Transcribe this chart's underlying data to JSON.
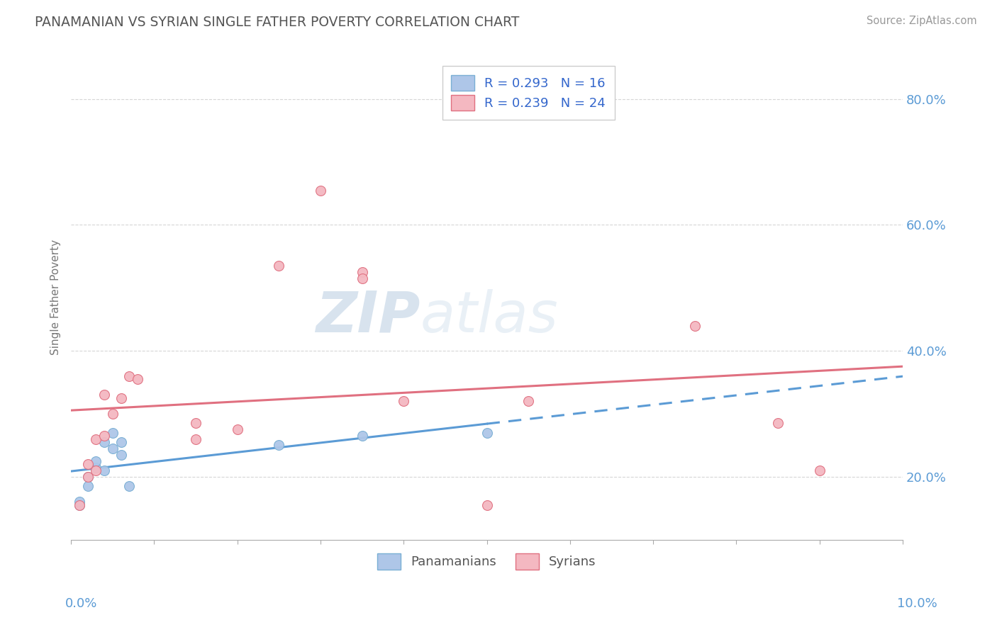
{
  "title": "PANAMANIAN VS SYRIAN SINGLE FATHER POVERTY CORRELATION CHART",
  "source_text": "Source: ZipAtlas.com",
  "ylabel": "Single Father Poverty",
  "watermark_zip": "ZIP",
  "watermark_atlas": "atlas",
  "xmin": 0.0,
  "xmax": 0.1,
  "ymin": 0.1,
  "ymax": 0.87,
  "yticks": [
    0.2,
    0.4,
    0.6,
    0.8
  ],
  "ytick_labels": [
    "20.0%",
    "40.0%",
    "60.0%",
    "80.0%"
  ],
  "panamanian_scatter": [
    [
      0.001,
      0.155
    ],
    [
      0.001,
      0.16
    ],
    [
      0.002,
      0.2
    ],
    [
      0.002,
      0.185
    ],
    [
      0.003,
      0.215
    ],
    [
      0.003,
      0.225
    ],
    [
      0.004,
      0.21
    ],
    [
      0.004,
      0.255
    ],
    [
      0.005,
      0.245
    ],
    [
      0.005,
      0.27
    ],
    [
      0.006,
      0.255
    ],
    [
      0.006,
      0.235
    ],
    [
      0.007,
      0.185
    ],
    [
      0.025,
      0.25
    ],
    [
      0.035,
      0.265
    ],
    [
      0.05,
      0.27
    ]
  ],
  "syrian_scatter": [
    [
      0.001,
      0.155
    ],
    [
      0.002,
      0.2
    ],
    [
      0.002,
      0.22
    ],
    [
      0.003,
      0.21
    ],
    [
      0.003,
      0.26
    ],
    [
      0.004,
      0.265
    ],
    [
      0.004,
      0.33
    ],
    [
      0.005,
      0.3
    ],
    [
      0.006,
      0.325
    ],
    [
      0.007,
      0.36
    ],
    [
      0.008,
      0.355
    ],
    [
      0.015,
      0.26
    ],
    [
      0.015,
      0.285
    ],
    [
      0.02,
      0.275
    ],
    [
      0.025,
      0.535
    ],
    [
      0.03,
      0.655
    ],
    [
      0.035,
      0.525
    ],
    [
      0.035,
      0.515
    ],
    [
      0.04,
      0.32
    ],
    [
      0.05,
      0.155
    ],
    [
      0.055,
      0.32
    ],
    [
      0.075,
      0.44
    ],
    [
      0.085,
      0.285
    ],
    [
      0.09,
      0.21
    ]
  ],
  "pan_trendline_color": "#5b9bd5",
  "syr_trendline_color": "#e07080",
  "background_color": "#ffffff",
  "grid_color": "#cccccc",
  "title_color": "#555555",
  "tick_color": "#5b9bd5",
  "scatter_pan_color": "#aec6e8",
  "scatter_syr_color": "#f4b8c1",
  "scatter_pan_edge": "#7aafd4",
  "scatter_syr_edge": "#e07080",
  "scatter_size": 100,
  "legend_r1": "R = 0.293",
  "legend_n1": "N = 16",
  "legend_r2": "R = 0.239",
  "legend_n2": "N = 24",
  "bottom_legend": [
    "Panamanians",
    "Syrians"
  ],
  "bottom_legend_colors": [
    "#aec6e8",
    "#f4b8c1"
  ],
  "pan_solid_to": 0.05,
  "syr_solid_full": true
}
